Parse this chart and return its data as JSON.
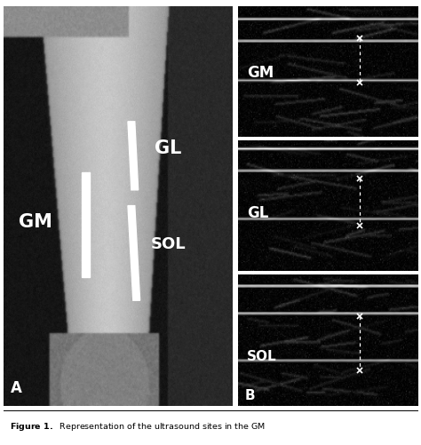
{
  "bg_color": "#ffffff",
  "border_color": "#888888",
  "caption_text": "Figure 1.",
  "caption_rest": "  Representation of the ultrasound sites in the GM",
  "panel_A_label": "A",
  "panel_B_label": "B",
  "us_labels": [
    "GM",
    "GL",
    "SOL"
  ],
  "photo_labels": [
    "GM",
    "GL",
    "SOL"
  ],
  "layout": {
    "fig_width": 4.74,
    "fig_height": 5.02,
    "dpi": 100
  }
}
